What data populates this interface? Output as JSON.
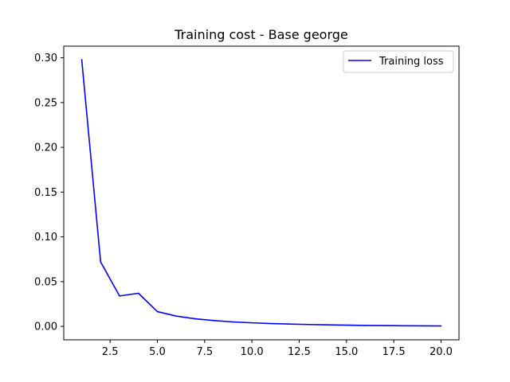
{
  "chart_data": {
    "type": "line",
    "title": "Training cost - Base george",
    "xlabel": "",
    "ylabel": "",
    "xlim": [
      0.05,
      20.95
    ],
    "ylim": [
      -0.015,
      0.313
    ],
    "xticks": [
      2.5,
      5.0,
      7.5,
      10.0,
      12.5,
      15.0,
      17.5,
      20.0
    ],
    "xtick_labels": [
      "2.5",
      "5.0",
      "7.5",
      "10.0",
      "12.5",
      "15.0",
      "17.5",
      "20.0"
    ],
    "yticks": [
      0.0,
      0.05,
      0.1,
      0.15,
      0.2,
      0.25,
      0.3
    ],
    "ytick_labels": [
      "0.00",
      "0.05",
      "0.10",
      "0.15",
      "0.20",
      "0.25",
      "0.30"
    ],
    "grid": false,
    "legend_position": "top-right",
    "series": [
      {
        "name": "Training loss",
        "color": "#0000ff",
        "x": [
          1,
          2,
          3,
          4,
          5,
          6,
          7,
          8,
          9,
          10,
          11,
          12,
          13,
          14,
          15,
          16,
          17,
          18,
          19,
          20
        ],
        "values": [
          0.298,
          0.072,
          0.034,
          0.037,
          0.0165,
          0.0115,
          0.0085,
          0.0065,
          0.005,
          0.004,
          0.0032,
          0.0026,
          0.0021,
          0.0017,
          0.0014,
          0.0011,
          0.0009,
          0.0007,
          0.0006,
          0.0005
        ]
      }
    ]
  }
}
